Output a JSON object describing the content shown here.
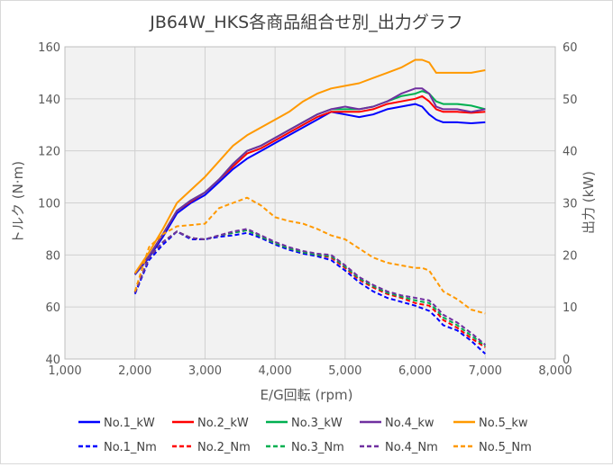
{
  "chart_data": {
    "type": "line",
    "title": "JB64W_HKS各商品組合せ別_出力グラフ",
    "xlabel": "E/G回転 (rpm)",
    "ylabel_left": "トルク (N·m)",
    "ylabel_right": "出力 (kW)",
    "xlim": [
      1000,
      8000
    ],
    "ylim_left": [
      40,
      160
    ],
    "ylim_right": [
      0,
      60
    ],
    "x_ticks": [
      "1,000",
      "2,000",
      "3,000",
      "4,000",
      "5,000",
      "6,000",
      "7,000",
      "8,000"
    ],
    "y_left_ticks": [
      "40",
      "60",
      "80",
      "100",
      "120",
      "140",
      "160"
    ],
    "y_right_ticks": [
      "0",
      "10",
      "20",
      "30",
      "40",
      "50",
      "60"
    ],
    "grid": true,
    "legend_position": "bottom",
    "x": [
      2000,
      2200,
      2400,
      2600,
      2800,
      3000,
      3200,
      3400,
      3600,
      3800,
      4000,
      4200,
      4400,
      4600,
      4800,
      5000,
      5200,
      5400,
      5600,
      5800,
      6000,
      6100,
      6200,
      6300,
      6400,
      6600,
      6800,
      7000
    ],
    "series": [
      {
        "name": "No.1_kW",
        "axis": "right",
        "style": "solid",
        "color": "#0000ff",
        "values": [
          16.2,
          19.5,
          23.5,
          28.0,
          30.0,
          31.5,
          34.0,
          36.5,
          38.5,
          40.0,
          41.5,
          43.0,
          44.5,
          46.0,
          47.5,
          47.0,
          46.5,
          47.0,
          48.0,
          48.5,
          49.0,
          48.5,
          47.0,
          46.0,
          45.5,
          45.5,
          45.3,
          45.5
        ]
      },
      {
        "name": "No.2_kW",
        "axis": "right",
        "style": "solid",
        "color": "#ff0000",
        "values": [
          16.3,
          19.8,
          24.0,
          28.5,
          30.3,
          32.0,
          34.5,
          37.0,
          39.5,
          40.5,
          42.0,
          43.5,
          45.0,
          46.5,
          47.5,
          47.5,
          47.5,
          48.0,
          49.0,
          49.5,
          50.0,
          50.5,
          49.5,
          48.0,
          47.5,
          47.5,
          47.3,
          47.5
        ]
      },
      {
        "name": "No.3_kW",
        "axis": "right",
        "style": "solid",
        "color": "#00b050",
        "values": [
          16.3,
          19.8,
          24.0,
          28.5,
          30.5,
          32.0,
          34.5,
          37.5,
          40.0,
          41.0,
          42.5,
          44.0,
          45.5,
          47.0,
          48.0,
          48.0,
          48.0,
          48.5,
          49.5,
          50.5,
          51.0,
          51.5,
          51.0,
          49.5,
          49.0,
          49.0,
          48.7,
          48.0
        ]
      },
      {
        "name": "No.4_kw",
        "axis": "right",
        "style": "solid",
        "color": "#7030a0",
        "values": [
          16.3,
          19.8,
          24.0,
          28.5,
          30.5,
          32.0,
          34.5,
          37.5,
          40.0,
          41.0,
          42.5,
          44.0,
          45.5,
          47.0,
          48.0,
          48.5,
          48.0,
          48.5,
          49.5,
          51.0,
          52.0,
          52.0,
          51.0,
          48.5,
          48.0,
          48.0,
          47.5,
          48.0
        ]
      },
      {
        "name": "No.5_kw",
        "axis": "right",
        "style": "solid",
        "color": "#ff9900",
        "values": [
          16.5,
          20.5,
          25.0,
          30.0,
          32.5,
          35.0,
          38.0,
          41.0,
          43.0,
          44.5,
          46.0,
          47.5,
          49.5,
          51.0,
          52.0,
          52.5,
          53.0,
          54.0,
          55.0,
          56.0,
          57.5,
          57.5,
          57.0,
          55.0,
          55.0,
          55.0,
          55.0,
          55.5
        ]
      },
      {
        "name": "No.1_Nm",
        "axis": "left",
        "style": "dashed",
        "color": "#0000ff",
        "values": [
          65,
          78,
          84,
          89,
          86,
          86,
          87,
          87.5,
          88.5,
          86.5,
          84,
          82,
          80.5,
          79.5,
          78,
          74,
          69.5,
          66,
          63.5,
          62,
          60.5,
          59.5,
          58.5,
          56,
          53,
          51,
          47,
          42
        ]
      },
      {
        "name": "No.2_Nm",
        "axis": "left",
        "style": "dashed",
        "color": "#ff0000",
        "values": [
          65.5,
          79,
          85,
          89,
          86.5,
          86,
          87.5,
          88.5,
          89.5,
          87,
          84.5,
          82.5,
          81,
          80,
          79,
          75,
          70.5,
          67.5,
          65,
          63.5,
          61.5,
          61,
          60.5,
          58,
          55,
          52,
          48,
          44.5
        ]
      },
      {
        "name": "No.3_Nm",
        "axis": "left",
        "style": "dashed",
        "color": "#00b050",
        "values": [
          65.5,
          79,
          85,
          89,
          86.5,
          86,
          87.5,
          88.5,
          89.5,
          87,
          84.5,
          82.5,
          81,
          80,
          79.5,
          75.5,
          71,
          68,
          65.5,
          64,
          62.5,
          62,
          61.5,
          59,
          56,
          53,
          49,
          45
        ]
      },
      {
        "name": "No.4_Nm",
        "axis": "left",
        "style": "dashed",
        "color": "#7030a0",
        "values": [
          65.5,
          79,
          85,
          89,
          86.5,
          86,
          87.5,
          89,
          90,
          87.5,
          85,
          83,
          81.5,
          80.5,
          80,
          76,
          71.5,
          68.5,
          66,
          64.5,
          63.5,
          63,
          62.5,
          60,
          57,
          54,
          50,
          45.5
        ]
      },
      {
        "name": "No.5_Nm",
        "axis": "left",
        "style": "dashed",
        "color": "#ff9900",
        "values": [
          66,
          83,
          88,
          91,
          91.5,
          92,
          98,
          100,
          102,
          99,
          94.5,
          93,
          92,
          90,
          87.5,
          86,
          82.5,
          79,
          77,
          76,
          75,
          75,
          74,
          70,
          66,
          63,
          59,
          57.5
        ]
      }
    ]
  }
}
